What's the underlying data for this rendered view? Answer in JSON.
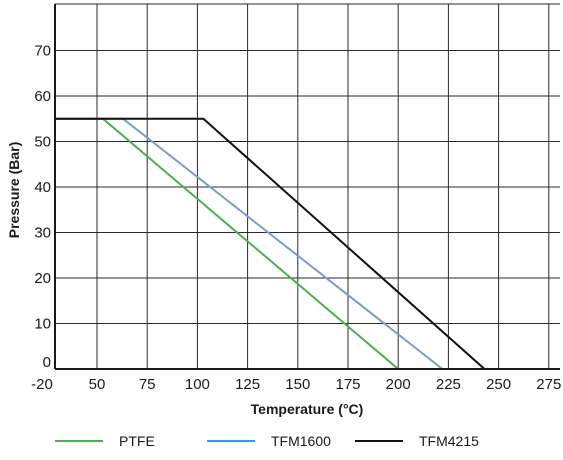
{
  "chart_data": {
    "type": "line",
    "xlabel": "Temperature (°C)",
    "ylabel": "Pressure (Bar)",
    "xlim": [
      -20,
      280
    ],
    "ylim": [
      0,
      80
    ],
    "x_ticks": [
      -20,
      50,
      75,
      100,
      125,
      150,
      175,
      200,
      225,
      250,
      275
    ],
    "y_ticks": [
      0,
      10,
      20,
      30,
      40,
      50,
      60,
      70
    ],
    "grid": true,
    "legend_position": "bottom",
    "series": [
      {
        "name": "PTFE",
        "color": "#4caf50",
        "x": [
          -20,
          53,
          200
        ],
        "y": [
          55,
          55,
          0
        ]
      },
      {
        "name": "TFM1600",
        "color": "#7b9bc8",
        "legend_color": "#2a9fd8",
        "x": [
          -20,
          63,
          222
        ],
        "y": [
          55,
          55,
          0
        ]
      },
      {
        "name": "TFM4215",
        "color": "#111111",
        "x": [
          -20,
          103,
          243
        ],
        "y": [
          55,
          55,
          0
        ]
      }
    ]
  }
}
